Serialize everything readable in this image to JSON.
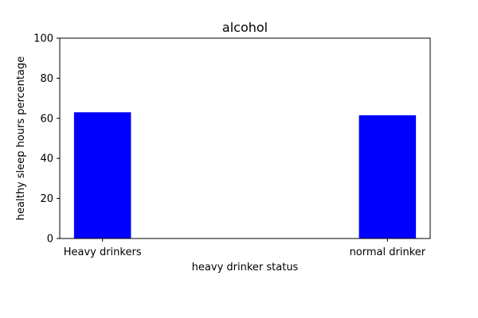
{
  "chart_data": {
    "type": "bar",
    "title": "alcohol",
    "xlabel": "heavy drinker status",
    "ylabel": "healthy sleep hours percentage",
    "categories": [
      "Heavy drinkers",
      "normal drinker"
    ],
    "values": [
      63,
      61.5
    ],
    "ylim": [
      0,
      100
    ],
    "yticks": [
      "0",
      "20",
      "40",
      "60",
      "80",
      "100"
    ],
    "bar_color": "#0000ff",
    "grid": false,
    "legend": "none"
  }
}
